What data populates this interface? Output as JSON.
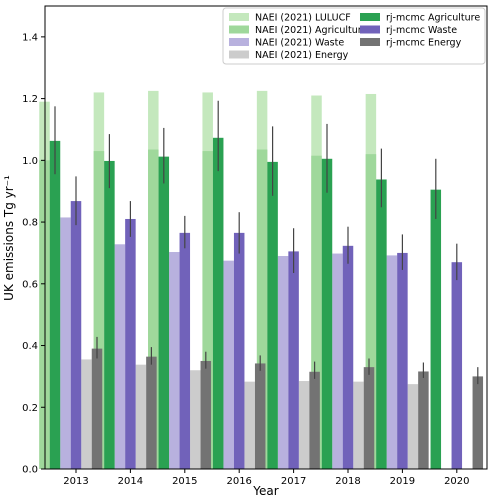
{
  "chart_data": {
    "type": "bar",
    "xlabel": "Year",
    "ylabel": "UK emissions Tg yr⁻¹",
    "ylim": [
      0,
      1.5
    ],
    "yticks": [
      "0.0",
      "0.2",
      "0.4",
      "0.6",
      "0.8",
      "1.0",
      "1.2",
      "1.4"
    ],
    "categories": [
      "2013",
      "2014",
      "2015",
      "2016",
      "2017",
      "2018",
      "2019",
      "2020"
    ],
    "grid": false,
    "legend_placement": "top-right",
    "series": [
      {
        "name": "NAEI (2021) LULUCF",
        "kind": "naei",
        "color": "#c4e8bd",
        "slot": -1,
        "values": [
          1.19,
          1.22,
          1.225,
          1.22,
          1.225,
          1.21,
          1.215,
          null
        ]
      },
      {
        "name": "NAEI (2021) Agriculture",
        "kind": "naei",
        "color": "#9fd89b",
        "slot": -1,
        "values": [
          1.0,
          1.03,
          1.035,
          1.03,
          1.035,
          1.015,
          1.02,
          null
        ]
      },
      {
        "name": "NAEI (2021) Waste",
        "kind": "naei",
        "color": "#b8b1de",
        "slot": 1,
        "values": [
          0.815,
          0.728,
          0.703,
          0.675,
          0.69,
          0.698,
          0.692,
          null
        ]
      },
      {
        "name": "NAEI (2021) Energy",
        "kind": "naei",
        "color": "#cccccc",
        "slot": 3,
        "values": [
          0.355,
          0.338,
          0.32,
          0.283,
          0.285,
          0.283,
          0.275,
          null
        ]
      },
      {
        "name": "rj-mcmc Agriculture",
        "kind": "rjmcmc",
        "color": "#2aa152",
        "slot": 0,
        "values": [
          1.063,
          0.998,
          1.012,
          1.073,
          0.995,
          1.005,
          0.938,
          0.905
        ],
        "err_low": [
          0.955,
          0.91,
          0.925,
          0.965,
          0.885,
          0.895,
          0.848,
          0.81
        ],
        "err_high": [
          1.175,
          1.085,
          1.105,
          1.193,
          1.11,
          1.118,
          1.038,
          1.005
        ]
      },
      {
        "name": "rj-mcmc Waste",
        "kind": "rjmcmc",
        "color": "#7162ba",
        "slot": 2,
        "values": [
          0.868,
          0.81,
          0.765,
          0.765,
          0.705,
          0.723,
          0.7,
          0.67
        ],
        "err_low": [
          0.79,
          0.752,
          0.715,
          0.698,
          0.635,
          0.665,
          0.645,
          0.612
        ],
        "err_high": [
          0.948,
          0.868,
          0.82,
          0.832,
          0.78,
          0.785,
          0.76,
          0.73
        ]
      },
      {
        "name": "rj-mcmc Energy",
        "kind": "rjmcmc",
        "color": "#737373",
        "slot": 4,
        "values": [
          0.39,
          0.364,
          0.35,
          0.342,
          0.315,
          0.33,
          0.316,
          0.3
        ],
        "err_low": [
          0.358,
          0.338,
          0.325,
          0.318,
          0.292,
          0.305,
          0.295,
          0.275
        ],
        "err_high": [
          0.428,
          0.395,
          0.38,
          0.368,
          0.348,
          0.358,
          0.345,
          0.33
        ]
      }
    ],
    "legend": [
      {
        "series": 0,
        "col": 0,
        "row": 0
      },
      {
        "series": 1,
        "col": 0,
        "row": 1
      },
      {
        "series": 2,
        "col": 0,
        "row": 2
      },
      {
        "series": 3,
        "col": 0,
        "row": 3
      },
      {
        "series": 4,
        "col": 1,
        "row": 0
      },
      {
        "series": 5,
        "col": 1,
        "row": 1
      },
      {
        "series": 6,
        "col": 1,
        "row": 2
      }
    ]
  }
}
